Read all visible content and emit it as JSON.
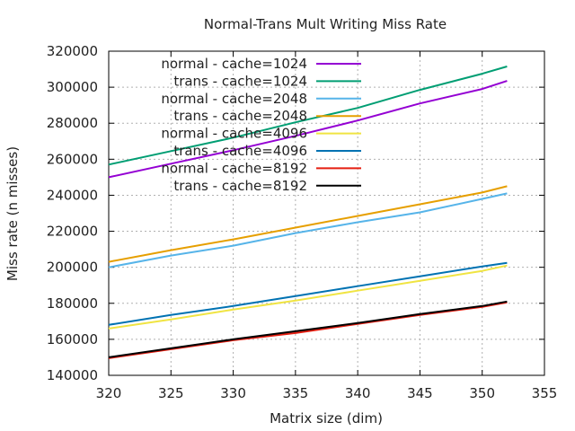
{
  "chart_data": {
    "type": "line",
    "title": "Normal-Trans Mult Writing Miss Rate",
    "xlabel": "Matrix size (dim)",
    "ylabel": "Miss rate (n misses)",
    "xlim": [
      320,
      355
    ],
    "ylim": [
      140000,
      320000
    ],
    "xticks": [
      320,
      325,
      330,
      335,
      340,
      345,
      350,
      355
    ],
    "yticks": [
      140000,
      160000,
      180000,
      200000,
      220000,
      240000,
      260000,
      280000,
      300000,
      320000
    ],
    "grid": true,
    "legend_position": "top-left",
    "series": [
      {
        "name": "normal - cache=1024",
        "color": "#9400d3",
        "x": [
          320,
          325,
          330,
          335,
          340,
          345,
          350,
          352
        ],
        "y": [
          250000,
          257500,
          265000,
          273000,
          281500,
          291000,
          299000,
          303500
        ]
      },
      {
        "name": "trans - cache=1024",
        "color": "#009e73",
        "x": [
          320,
          325,
          330,
          335,
          340,
          345,
          350,
          352
        ],
        "y": [
          257000,
          264500,
          272000,
          280500,
          288500,
          298500,
          307500,
          311500
        ]
      },
      {
        "name": "normal - cache=2048",
        "color": "#56b4e9",
        "x": [
          320,
          325,
          330,
          335,
          340,
          345,
          350,
          352
        ],
        "y": [
          200000,
          206500,
          212000,
          219000,
          225000,
          230500,
          238000,
          241000
        ]
      },
      {
        "name": "trans - cache=2048",
        "color": "#e69f00",
        "x": [
          320,
          325,
          330,
          335,
          340,
          345,
          350,
          352
        ],
        "y": [
          203000,
          209500,
          215500,
          222000,
          228500,
          235000,
          241500,
          245000
        ]
      },
      {
        "name": "normal - cache=4096",
        "color": "#f0e442",
        "x": [
          320,
          325,
          330,
          335,
          340,
          345,
          350,
          352
        ],
        "y": [
          166000,
          171000,
          176500,
          181500,
          187000,
          192500,
          198000,
          201000
        ]
      },
      {
        "name": "trans - cache=4096",
        "color": "#0072b2",
        "x": [
          320,
          325,
          330,
          335,
          340,
          345,
          350,
          352
        ],
        "y": [
          168000,
          173500,
          178500,
          184000,
          189500,
          195000,
          200500,
          202500
        ]
      },
      {
        "name": "normal - cache=8192",
        "color": "#e51e10",
        "x": [
          320,
          325,
          330,
          335,
          340,
          345,
          350,
          352
        ],
        "y": [
          149500,
          154500,
          159500,
          163500,
          168500,
          173500,
          178000,
          180500
        ]
      },
      {
        "name": "trans - cache=8192",
        "color": "#000000",
        "x": [
          320,
          325,
          330,
          335,
          340,
          345,
          350,
          352
        ],
        "y": [
          150000,
          155000,
          160000,
          164500,
          169000,
          174000,
          178500,
          181000
        ]
      }
    ]
  }
}
